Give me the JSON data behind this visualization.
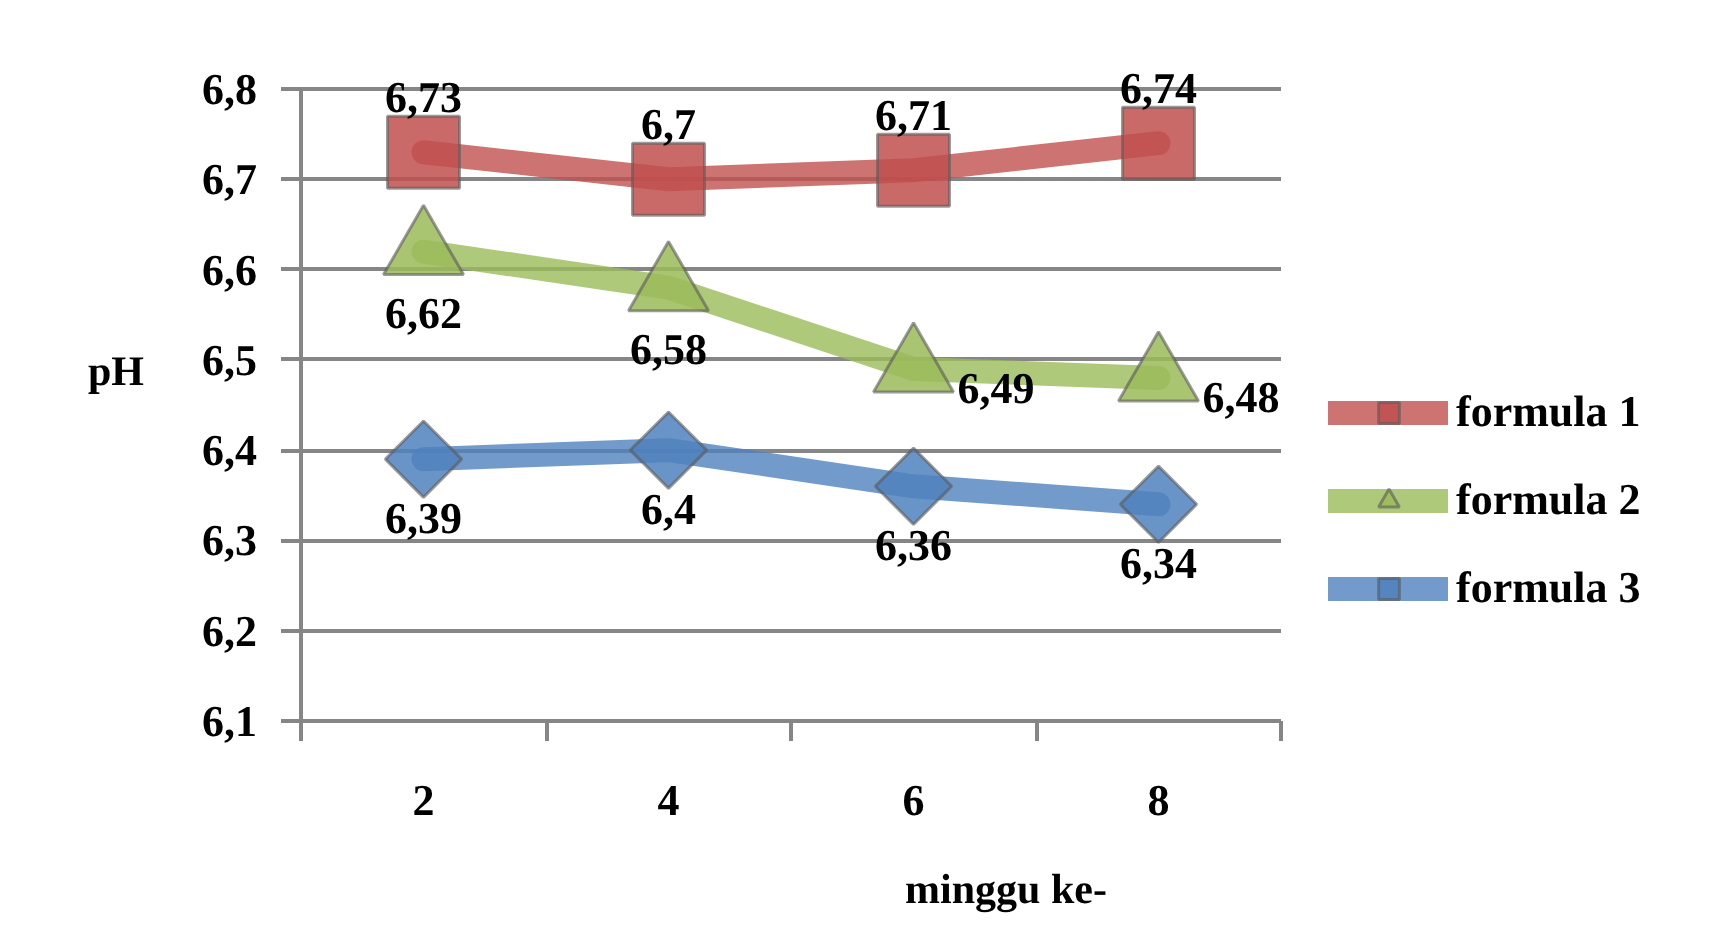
{
  "chart_data": {
    "type": "line",
    "xlabel": "minggu ke-",
    "ylabel": "pH",
    "categories": [
      "2",
      "4",
      "6",
      "8"
    ],
    "ylim": [
      6.1,
      6.8
    ],
    "yticks": [
      {
        "value": 6.1,
        "label": "6,1"
      },
      {
        "value": 6.2,
        "label": "6,2"
      },
      {
        "value": 6.3,
        "label": "6,3"
      },
      {
        "value": 6.4,
        "label": "6,4"
      },
      {
        "value": 6.5,
        "label": "6,5"
      },
      {
        "value": 6.6,
        "label": "6,6"
      },
      {
        "value": 6.7,
        "label": "6,7"
      },
      {
        "value": 6.8,
        "label": "6,8"
      }
    ],
    "grid": "y",
    "legend": "right",
    "line_style": "solid",
    "series": [
      {
        "name": "formula 1",
        "color": "#c0504d",
        "marker": "square",
        "values": [
          6.73,
          6.7,
          6.71,
          6.74
        ],
        "value_labels": [
          "6,73",
          "6,7",
          "6,71",
          "6,74"
        ]
      },
      {
        "name": "formula 2",
        "color": "#9bbb59",
        "marker": "triangle",
        "values": [
          6.62,
          6.58,
          6.49,
          6.48
        ],
        "value_labels": [
          "6,62",
          "6,58",
          "6,49",
          "6,48"
        ]
      },
      {
        "name": "formula 3",
        "color": "#4f81bd",
        "marker": "diamond",
        "values": [
          6.39,
          6.4,
          6.36,
          6.34
        ],
        "value_labels": [
          "6,39",
          "6,4",
          "6,36",
          "6,34"
        ]
      }
    ]
  }
}
